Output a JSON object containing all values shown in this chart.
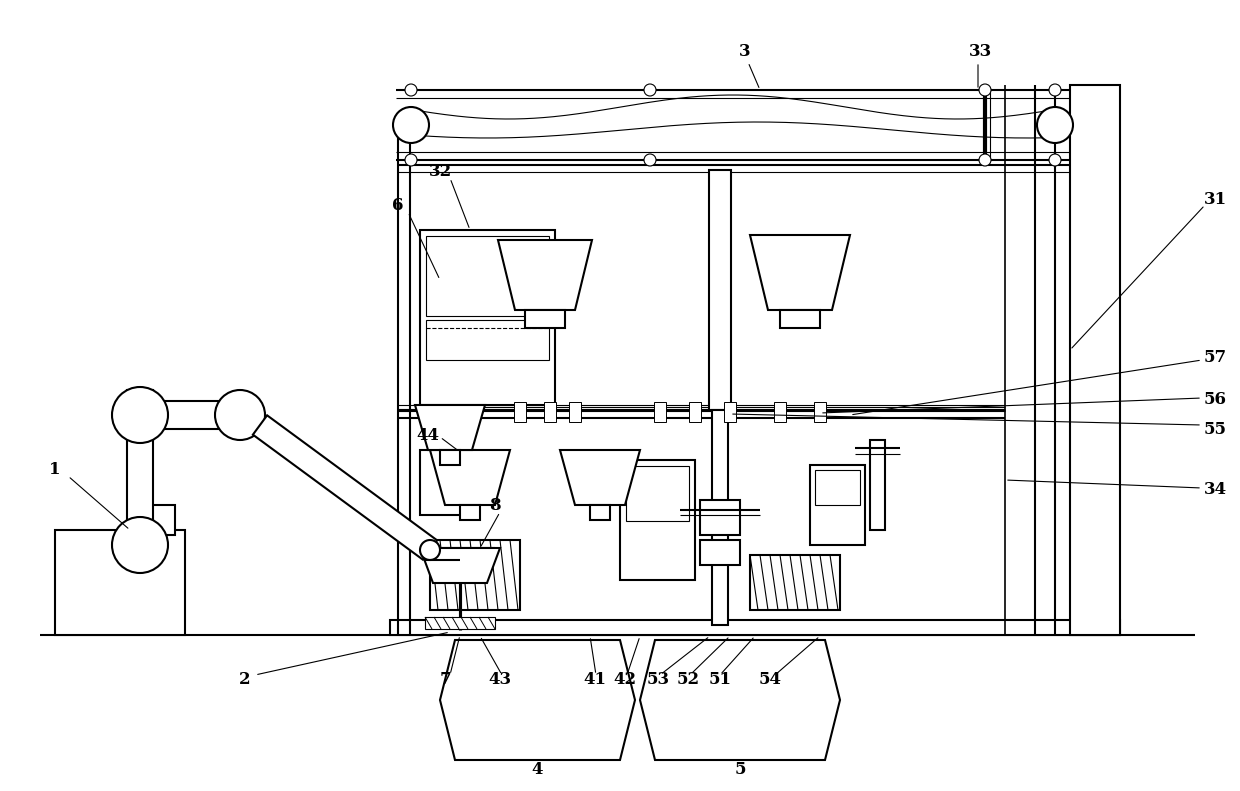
{
  "bg_color": "#ffffff",
  "line_color": "#000000",
  "lw": 1.5,
  "lw_thin": 0.8,
  "lw_thick": 2.5,
  "label_fs": 12,
  "figsize": [
    12.4,
    7.91
  ],
  "dpi": 100
}
